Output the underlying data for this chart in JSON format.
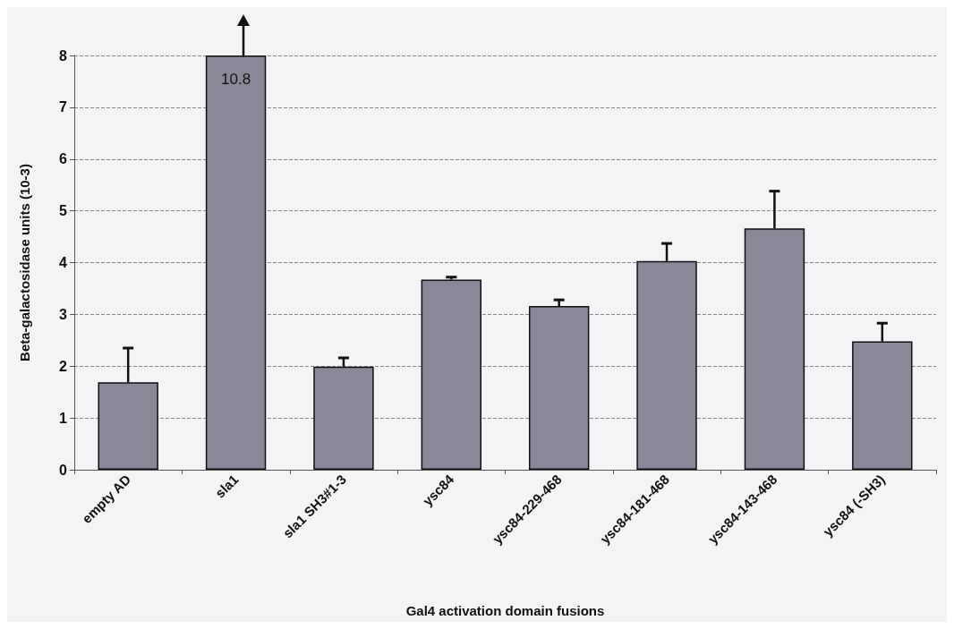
{
  "chart_data": {
    "type": "bar",
    "xlabel": "Gal4 activation domain fusions",
    "ylabel": "Beta-galactosidase units (10-3)",
    "categories": [
      "empty AD",
      "sla1",
      "sla1 SH3#1-3",
      "ysc84",
      "ysc84-229-468",
      "ysc84-181-468",
      "ysc84-143-468",
      "ysc84 (-SH3)"
    ],
    "values": [
      1.69,
      8,
      1.99,
      3.67,
      3.16,
      4.03,
      4.66,
      2.48
    ],
    "errors": [
      [
        1.69,
        2.35
      ],
      null,
      [
        1.99,
        2.16
      ],
      [
        3.67,
        3.72
      ],
      [
        3.16,
        3.28
      ],
      [
        4.03,
        4.37
      ],
      [
        4.66,
        5.38
      ],
      [
        2.48,
        2.83
      ]
    ],
    "color": "#8a8898",
    "ylim": [
      0,
      8
    ],
    "yticks": [
      0,
      1,
      2,
      3,
      4,
      5,
      6,
      7,
      8
    ],
    "grid": "y",
    "annotations": [
      "10.8"
    ]
  }
}
